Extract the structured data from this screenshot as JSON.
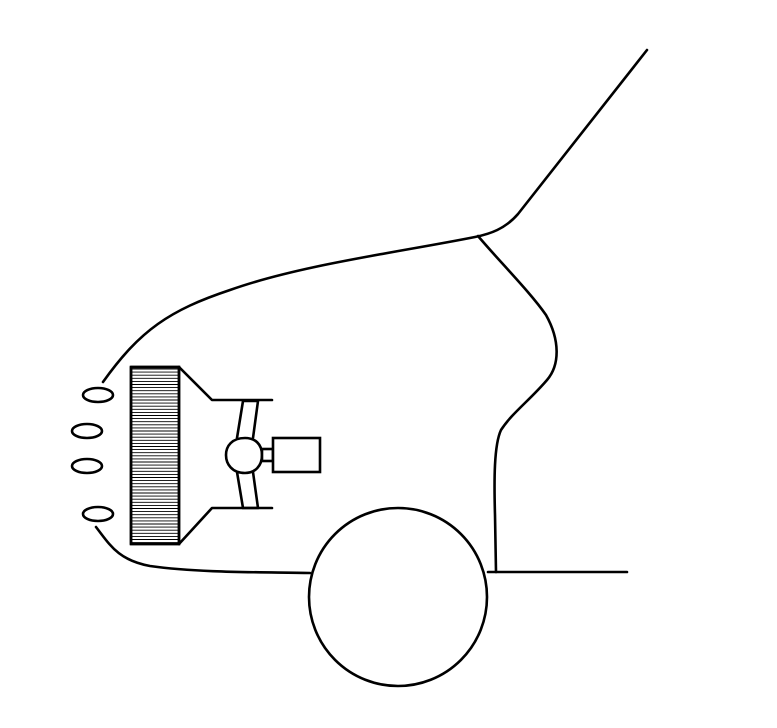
{
  "diagram": {
    "subject": "car-front-cooling-system",
    "colors": {
      "line": "#000000",
      "background": "#ffffff"
    },
    "parts": [
      "car-body-outline",
      "front-wheel",
      "air-inlets",
      "radiator",
      "fan-shroud",
      "cooling-fan",
      "fan-motor"
    ],
    "air_inlet_count": 4
  }
}
